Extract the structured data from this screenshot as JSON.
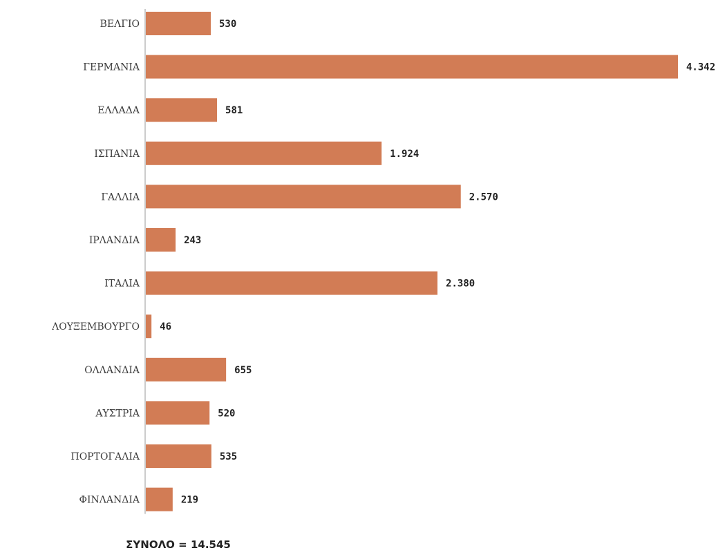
{
  "chart_data": {
    "type": "bar",
    "orientation": "horizontal",
    "categories": [
      "ΒΕΛΓΙΟ",
      "ΓΕΡΜΑΝΙΑ",
      "ΕΛΛΑΔΑ",
      "ΙΣΠΑΝΙΑ",
      "ΓΑΛΛΙΑ",
      "ΙΡΛΑΝΔΙΑ",
      "ΙΤΑΛΙΑ",
      "ΛΟΥΞΕΜΒΟΥΡΓΟ",
      "ΟΛΛΑΝΔΙΑ",
      "ΑΥΣΤΡΙΑ",
      "ΠΟΡΤΟΓΑΛΙΑ",
      "ΦΙΝΛΑΝΔΙΑ"
    ],
    "values": [
      530,
      4342,
      581,
      1924,
      2570,
      243,
      2380,
      46,
      655,
      520,
      535,
      219
    ],
    "value_labels": [
      "530",
      "4.342",
      "581",
      "1.924",
      "2.570",
      "243",
      "2.380",
      "46",
      "655",
      "520",
      "535",
      "219"
    ],
    "total_label": "ΣΥΝΟΛΟ = 14.545",
    "bar_color": "#d27c55",
    "grid": false,
    "legend": "none"
  }
}
